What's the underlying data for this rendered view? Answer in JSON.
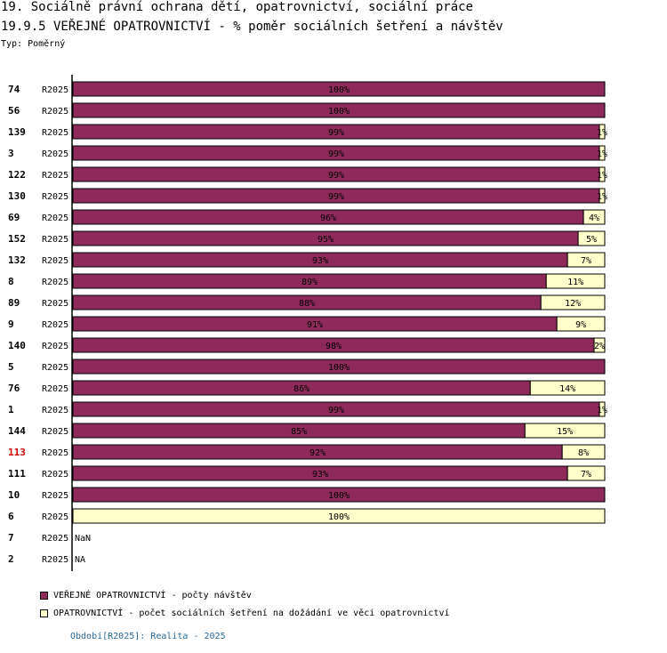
{
  "header": {
    "title": "19. Sociálně právní ochrana dětí, opatrovnictví, sociální práce",
    "subtitle": "19.9.5 VEŘEJNÉ OPATROVNICTVÍ - % poměr sociálních šetření a návštěv",
    "typ": "Typ: Poměrný"
  },
  "colors": {
    "series1": "#8e2a5a",
    "series2": "#ffffcc",
    "highlight": "#cc0000"
  },
  "chart_data": {
    "type": "bar",
    "orientation": "horizontal",
    "stacked": true,
    "xlim": [
      0,
      100
    ],
    "categories": [
      "74",
      "56",
      "139",
      "3",
      "122",
      "130",
      "69",
      "152",
      "132",
      "8",
      "89",
      "9",
      "140",
      "5",
      "76",
      "1",
      "144",
      "113",
      "111",
      "10",
      "6",
      "7",
      "2"
    ],
    "period_labels": [
      "R2025",
      "R2025",
      "R2025",
      "R2025",
      "R2025",
      "R2025",
      "R2025",
      "R2025",
      "R2025",
      "R2025",
      "R2025",
      "R2025",
      "R2025",
      "R2025",
      "R2025",
      "R2025",
      "R2025",
      "R2025",
      "R2025",
      "R2025",
      "R2025",
      "R2025",
      "R2025"
    ],
    "highlighted_category": "113",
    "series": [
      {
        "name": "VEŘEJNÉ OPATROVNICTVÍ - počty návštěv",
        "values": [
          100,
          100,
          99,
          99,
          99,
          99,
          96,
          95,
          93,
          89,
          88,
          91,
          98,
          100,
          86,
          99,
          85,
          92,
          93,
          100,
          0,
          null,
          null
        ],
        "labels": [
          "100%",
          "100%",
          "99%",
          "99%",
          "99%",
          "99%",
          "96%",
          "95%",
          "93%",
          "89%",
          "88%",
          "91%",
          "98%",
          "100%",
          "86%",
          "99%",
          "85%",
          "92%",
          "93%",
          "100%",
          "",
          "",
          ""
        ]
      },
      {
        "name": "OPATROVNICTVÍ - počet sociálních šetření na dožádání ve věci opatrovnictví",
        "values": [
          0,
          0,
          1,
          1,
          1,
          1,
          4,
          5,
          7,
          11,
          12,
          9,
          2,
          0,
          14,
          1,
          15,
          8,
          7,
          0,
          100,
          null,
          null
        ],
        "labels": [
          "",
          "",
          "1%",
          "1%",
          "1%",
          "1%",
          "4%",
          "5%",
          "7%",
          "11%",
          "12%",
          "9%",
          "2%",
          "",
          "14%",
          "1%",
          "15%",
          "8%",
          "7%",
          "",
          "100%",
          "",
          ""
        ]
      }
    ],
    "row_notes": [
      "",
      "",
      "",
      "",
      "",
      "",
      "",
      "",
      "",
      "",
      "",
      "",
      "",
      "",
      "",
      "",
      "",
      "",
      "",
      "",
      "",
      "NaN",
      "NA"
    ]
  },
  "legend": {
    "item1": "VEŘEJNÉ OPATROVNICTVÍ - počty návštěv",
    "item2": "OPATROVNICTVÍ - počet sociálních šetření na dožádání ve věci opatrovnictví"
  },
  "footer": "Období[R2025]: Realita - 2025"
}
